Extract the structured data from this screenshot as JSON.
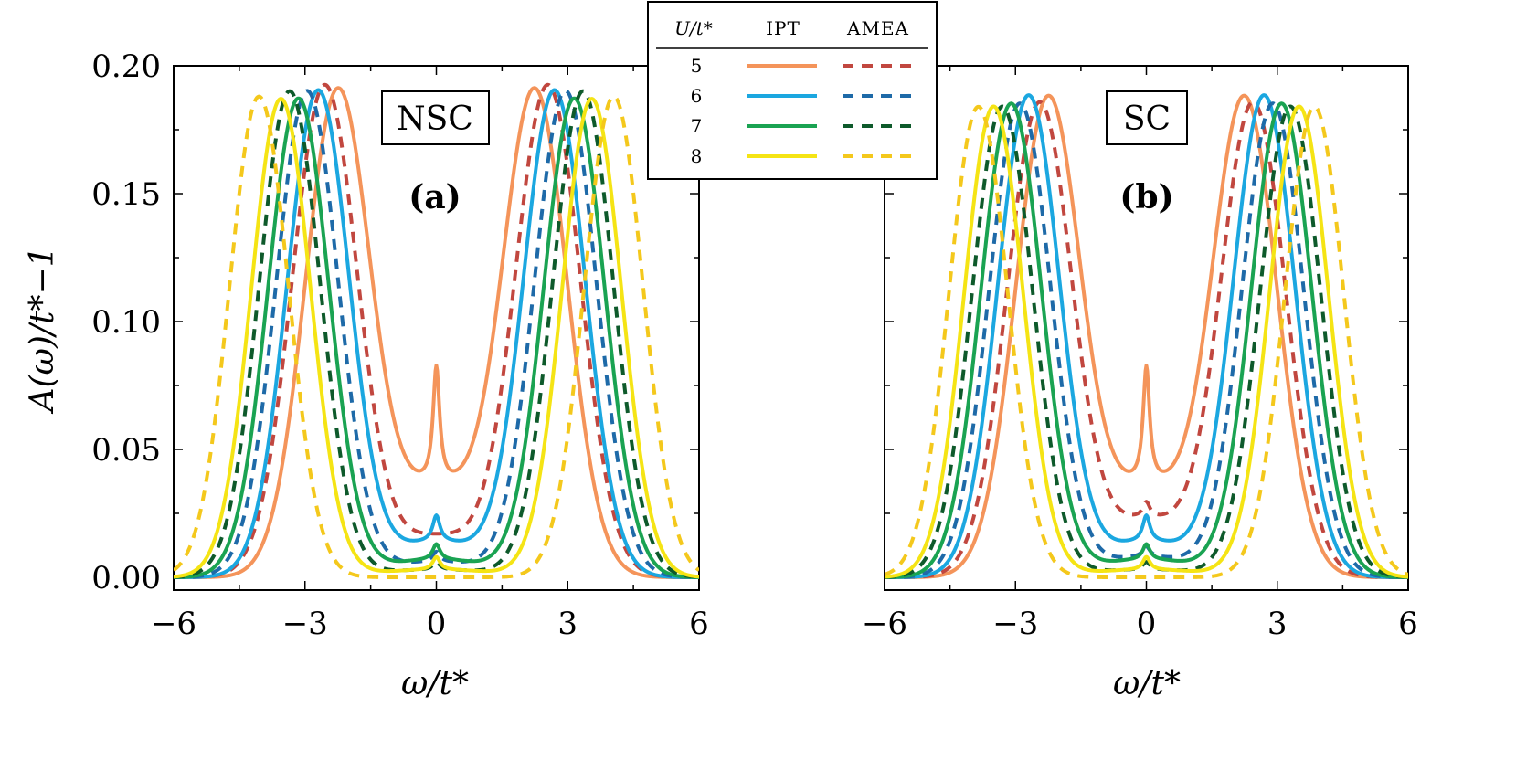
{
  "chart_data": [
    {
      "type": "line",
      "panel": "(a)",
      "tag": "NSC",
      "xlabel": "ω/t*",
      "ylabel": "A(ω)/t*−1",
      "xlim": [
        -6,
        6
      ],
      "ylim": [
        -0.005,
        0.2
      ],
      "xticks": [
        -6,
        -3,
        0,
        3,
        6
      ],
      "xtick_labels": [
        "−6",
        "−3",
        "0",
        "3",
        "6"
      ],
      "yticks": [
        0.0,
        0.05,
        0.1,
        0.15,
        0.2
      ],
      "ytick_labels": [
        "0.00",
        "0.05",
        "0.10",
        "0.15",
        "0.20"
      ],
      "grid": false,
      "series": [
        {
          "name": "U/t*=5 IPT",
          "U": 5,
          "method": "IPT",
          "color": "#f4945a",
          "dash": "solid",
          "peak_pos": 2.25,
          "peak_height": 0.19,
          "width": 1.05,
          "zero_peak": 0.045,
          "zero_width": 0.09,
          "floor": 0.034
        },
        {
          "name": "U/t*=5 AMEA",
          "U": 5,
          "method": "AMEA",
          "color": "#c1473f",
          "dash": "dashed",
          "peak_pos": 2.55,
          "peak_height": 0.192,
          "width": 1.05,
          "zero_peak": 0.0,
          "zero_width": 0.1,
          "floor": 0.016
        },
        {
          "name": "U/t*=6 IPT",
          "U": 6,
          "method": "IPT",
          "color": "#1ba7e0",
          "dash": "solid",
          "peak_pos": 2.7,
          "peak_height": 0.19,
          "width": 1.0,
          "zero_peak": 0.01,
          "zero_width": 0.1,
          "floor": 0.014
        },
        {
          "name": "U/t*=6 AMEA",
          "U": 6,
          "method": "AMEA",
          "color": "#1e6aa8",
          "dash": "dashed",
          "peak_pos": 2.95,
          "peak_height": 0.19,
          "width": 1.0,
          "zero_peak": 0.004,
          "zero_width": 0.1,
          "floor": 0.006
        },
        {
          "name": "U/t*=7 IPT",
          "U": 7,
          "method": "IPT",
          "color": "#1aa352",
          "dash": "solid",
          "peak_pos": 3.15,
          "peak_height": 0.187,
          "width": 0.98,
          "zero_peak": 0.006,
          "zero_width": 0.1,
          "floor": 0.007
        },
        {
          "name": "U/t*=7 AMEA",
          "U": 7,
          "method": "AMEA",
          "color": "#0e5a2b",
          "dash": "dashed",
          "peak_pos": 3.35,
          "peak_height": 0.19,
          "width": 0.98,
          "zero_peak": 0.003,
          "zero_width": 0.1,
          "floor": 0.003
        },
        {
          "name": "U/t*=8 IPT",
          "U": 8,
          "method": "IPT",
          "color": "#f5e414",
          "dash": "solid",
          "peak_pos": 3.55,
          "peak_height": 0.187,
          "width": 0.95,
          "zero_peak": 0.005,
          "zero_width": 0.1,
          "floor": 0.003
        },
        {
          "name": "U/t*=8 AMEA",
          "U": 8,
          "method": "AMEA",
          "color": "#f4c81c",
          "dash": "dashed",
          "peak_pos": 4.05,
          "peak_height": 0.188,
          "width": 0.95,
          "zero_peak": 0.0,
          "zero_width": 0.1,
          "floor": 0.0
        }
      ]
    },
    {
      "type": "line",
      "panel": "(b)",
      "tag": "SC",
      "xlabel": "ω/t*",
      "ylabel": "",
      "xlim": [
        -6,
        6
      ],
      "ylim": [
        -0.005,
        0.2
      ],
      "xticks": [
        -6,
        -3,
        0,
        3,
        6
      ],
      "xtick_labels": [
        "−6",
        "−3",
        "0",
        "3",
        "6"
      ],
      "yticks": [
        0.0,
        0.05,
        0.1,
        0.15,
        0.2
      ],
      "grid": false,
      "series": [
        {
          "name": "U/t*=5 IPT",
          "U": 5,
          "method": "IPT",
          "color": "#f4945a",
          "dash": "solid",
          "peak_pos": 2.25,
          "peak_height": 0.187,
          "width": 1.05,
          "zero_peak": 0.045,
          "zero_width": 0.09,
          "floor": 0.034
        },
        {
          "name": "U/t*=5 AMEA",
          "U": 5,
          "method": "AMEA",
          "color": "#c1473f",
          "dash": "dashed",
          "peak_pos": 2.45,
          "peak_height": 0.185,
          "width": 1.05,
          "zero_peak": 0.006,
          "zero_width": 0.1,
          "floor": 0.022
        },
        {
          "name": "U/t*=6 IPT",
          "U": 6,
          "method": "IPT",
          "color": "#1ba7e0",
          "dash": "solid",
          "peak_pos": 2.7,
          "peak_height": 0.188,
          "width": 1.0,
          "zero_peak": 0.01,
          "zero_width": 0.1,
          "floor": 0.014
        },
        {
          "name": "U/t*=6 AMEA",
          "U": 6,
          "method": "AMEA",
          "color": "#1e6aa8",
          "dash": "dashed",
          "peak_pos": 2.9,
          "peak_height": 0.185,
          "width": 1.0,
          "zero_peak": 0.004,
          "zero_width": 0.1,
          "floor": 0.008
        },
        {
          "name": "U/t*=7 IPT",
          "U": 7,
          "method": "IPT",
          "color": "#1aa352",
          "dash": "solid",
          "peak_pos": 3.1,
          "peak_height": 0.185,
          "width": 0.98,
          "zero_peak": 0.006,
          "zero_width": 0.1,
          "floor": 0.007
        },
        {
          "name": "U/t*=7 AMEA",
          "U": 7,
          "method": "AMEA",
          "color": "#0e5a2b",
          "dash": "dashed",
          "peak_pos": 3.3,
          "peak_height": 0.184,
          "width": 0.98,
          "zero_peak": 0.003,
          "zero_width": 0.1,
          "floor": 0.003
        },
        {
          "name": "U/t*=8 IPT",
          "U": 8,
          "method": "IPT",
          "color": "#f5e414",
          "dash": "solid",
          "peak_pos": 3.5,
          "peak_height": 0.184,
          "width": 0.95,
          "zero_peak": 0.005,
          "zero_width": 0.1,
          "floor": 0.003
        },
        {
          "name": "U/t*=8 AMEA",
          "U": 8,
          "method": "AMEA",
          "color": "#f4c81c",
          "dash": "dashed",
          "peak_pos": 3.85,
          "peak_height": 0.184,
          "width": 0.95,
          "zero_peak": 0.0,
          "zero_width": 0.1,
          "floor": 0.0
        }
      ]
    }
  ],
  "legend": {
    "header": {
      "u": "U/t*",
      "ipt": "IPT",
      "amea": "AMEA"
    },
    "rows": [
      {
        "u": "5",
        "ipt_color": "#f4945a",
        "amea_color": "#c1473f"
      },
      {
        "u": "6",
        "ipt_color": "#1ba7e0",
        "amea_color": "#1e6aa8"
      },
      {
        "u": "7",
        "ipt_color": "#1aa352",
        "amea_color": "#0e5a2b"
      },
      {
        "u": "8",
        "ipt_color": "#f5e414",
        "amea_color": "#f4c81c"
      }
    ]
  }
}
